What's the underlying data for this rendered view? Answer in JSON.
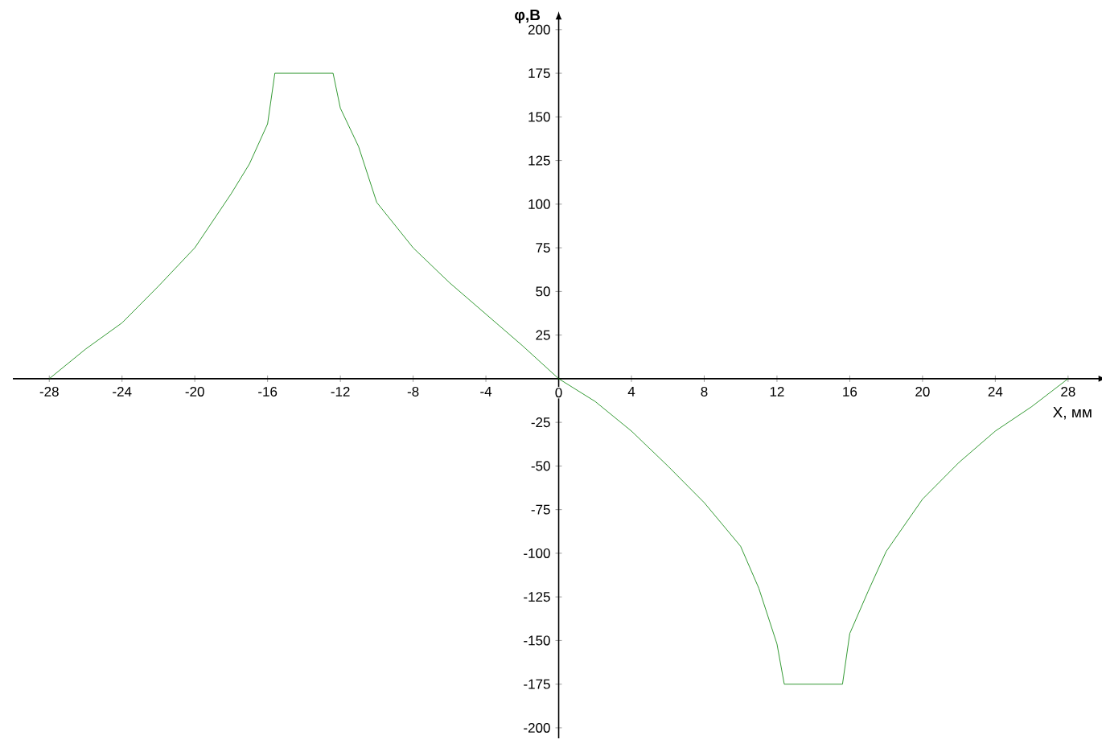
{
  "chart_data": {
    "type": "line",
    "xlabel": "X, мм",
    "ylabel": "**φ,В**",
    "x": [
      -28,
      -26,
      -24,
      -22,
      -20,
      -18,
      -17,
      -16,
      -15.6,
      -12.4,
      -12,
      -11,
      -10,
      -8,
      -6,
      -4,
      -2,
      0,
      2,
      4,
      6,
      8,
      10,
      11,
      12,
      12.4,
      15.6,
      16,
      17,
      18,
      20,
      22,
      24,
      26,
      28
    ],
    "series": [
      {
        "color": "#008000",
        "values": [
          0,
          17,
          32,
          53,
          75,
          106,
          123,
          146,
          175,
          175,
          155,
          133,
          101,
          75,
          55,
          37,
          19,
          0,
          -13,
          -30,
          -50,
          -71,
          -96,
          -120,
          -152,
          -175,
          -175,
          -146,
          -122,
          -99,
          -69,
          -48,
          -30,
          -16,
          0
        ]
      }
    ],
    "xlim": [
      -30,
      29.6
    ],
    "ylim": [
      -206,
      205
    ],
    "xticks": [
      -28,
      -24,
      -20,
      -16,
      -12,
      -8,
      -4,
      0,
      4,
      8,
      12,
      16,
      20,
      24,
      28
    ],
    "yticks": [
      -200,
      -175,
      -150,
      -125,
      -100,
      -75,
      -50,
      -25,
      25,
      50,
      75,
      100,
      125,
      150,
      175,
      200
    ],
    "grid": false,
    "marker": "none",
    "line_style": "solid"
  }
}
